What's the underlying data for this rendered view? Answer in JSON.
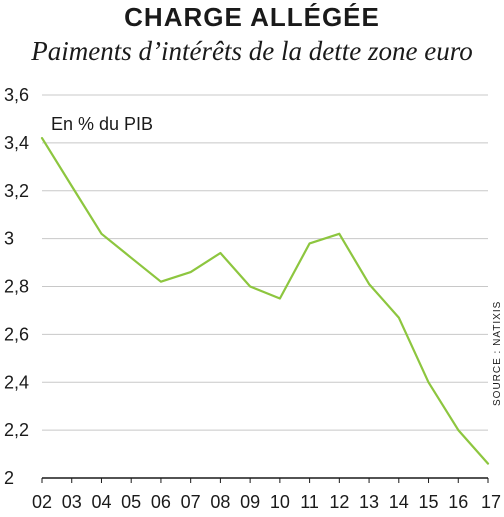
{
  "chart_data": {
    "type": "line",
    "title": "CHARGE ALLÉGÉE",
    "subtitle": "Paiments d’intérêts de la dette zone euro",
    "unit_label": "En % du PIB",
    "source": "SOURCE : NATIXIS",
    "categories": [
      "02",
      "03",
      "04",
      "05",
      "06",
      "07",
      "08",
      "09",
      "10",
      "11",
      "12",
      "13",
      "14",
      "15",
      "16",
      "17"
    ],
    "y_ticks": [
      "3,6",
      "3,4",
      "3,2",
      "3",
      "2,8",
      "2,6",
      "2,4",
      "2,2",
      "2"
    ],
    "ylim": [
      2,
      3.6
    ],
    "grid": true,
    "series": [
      {
        "color": "#8dc63f",
        "values": [
          3.42,
          3.22,
          3.02,
          2.92,
          2.82,
          2.86,
          2.94,
          2.8,
          2.75,
          2.98,
          3.02,
          2.81,
          2.67,
          2.4,
          2.2,
          2.06
        ]
      }
    ]
  }
}
